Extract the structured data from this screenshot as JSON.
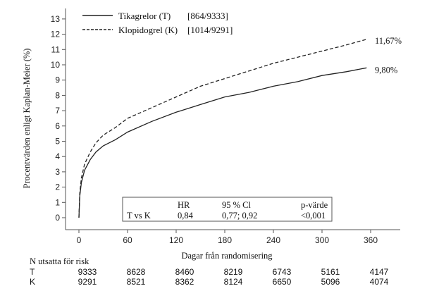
{
  "chart_data": {
    "type": "line",
    "title": "",
    "xlabel": "Dagar från randomisering",
    "ylabel": "Procentvärden enligt Kaplan-Meier (%)",
    "xlim": [
      0,
      390
    ],
    "ylim": [
      -1,
      13.8
    ],
    "xticks": [
      0,
      60,
      120,
      180,
      240,
      300,
      360
    ],
    "yticks": [
      0,
      1,
      2,
      3,
      4,
      5,
      6,
      7,
      8,
      9,
      10,
      11,
      12,
      13
    ],
    "grid": false,
    "legend_position": "top-left",
    "series": [
      {
        "name": "Tikagrelor (T)",
        "counts": "[864/9333]",
        "style": "solid",
        "end_label": "9,80%",
        "x": [
          0,
          1,
          3,
          7,
          14,
          21,
          30,
          45,
          60,
          90,
          120,
          150,
          180,
          210,
          240,
          270,
          300,
          330,
          355
        ],
        "y": [
          0,
          1.4,
          2.3,
          3.1,
          3.8,
          4.3,
          4.7,
          5.1,
          5.6,
          6.3,
          6.9,
          7.4,
          7.9,
          8.2,
          8.6,
          8.9,
          9.3,
          9.55,
          9.8
        ]
      },
      {
        "name": "Klopidogrel (K)",
        "counts": "[1014/9291]",
        "style": "dashed",
        "end_label": "11,67%",
        "x": [
          0,
          1,
          3,
          7,
          14,
          21,
          30,
          45,
          60,
          90,
          120,
          150,
          180,
          210,
          240,
          270,
          300,
          330,
          355
        ],
        "y": [
          0,
          1.6,
          2.6,
          3.5,
          4.3,
          4.9,
          5.4,
          5.9,
          6.5,
          7.2,
          7.9,
          8.6,
          9.1,
          9.6,
          10.1,
          10.5,
          10.9,
          11.3,
          11.67
        ]
      }
    ],
    "stats_table": {
      "headers": [
        "",
        "HR",
        "95 % Cl",
        "p-värde"
      ],
      "row": [
        "T vs K",
        "0,84",
        "0,77; 0,92",
        "<0,001"
      ]
    },
    "risk_table": {
      "title": "N utsatta för risk",
      "rows": [
        {
          "label": "T",
          "values": [
            "9333",
            "8628",
            "8460",
            "8219",
            "6743",
            "5161",
            "4147"
          ]
        },
        {
          "label": "K",
          "values": [
            "9291",
            "8521",
            "8362",
            "8124",
            "6650",
            "5096",
            "4074"
          ]
        }
      ]
    }
  }
}
